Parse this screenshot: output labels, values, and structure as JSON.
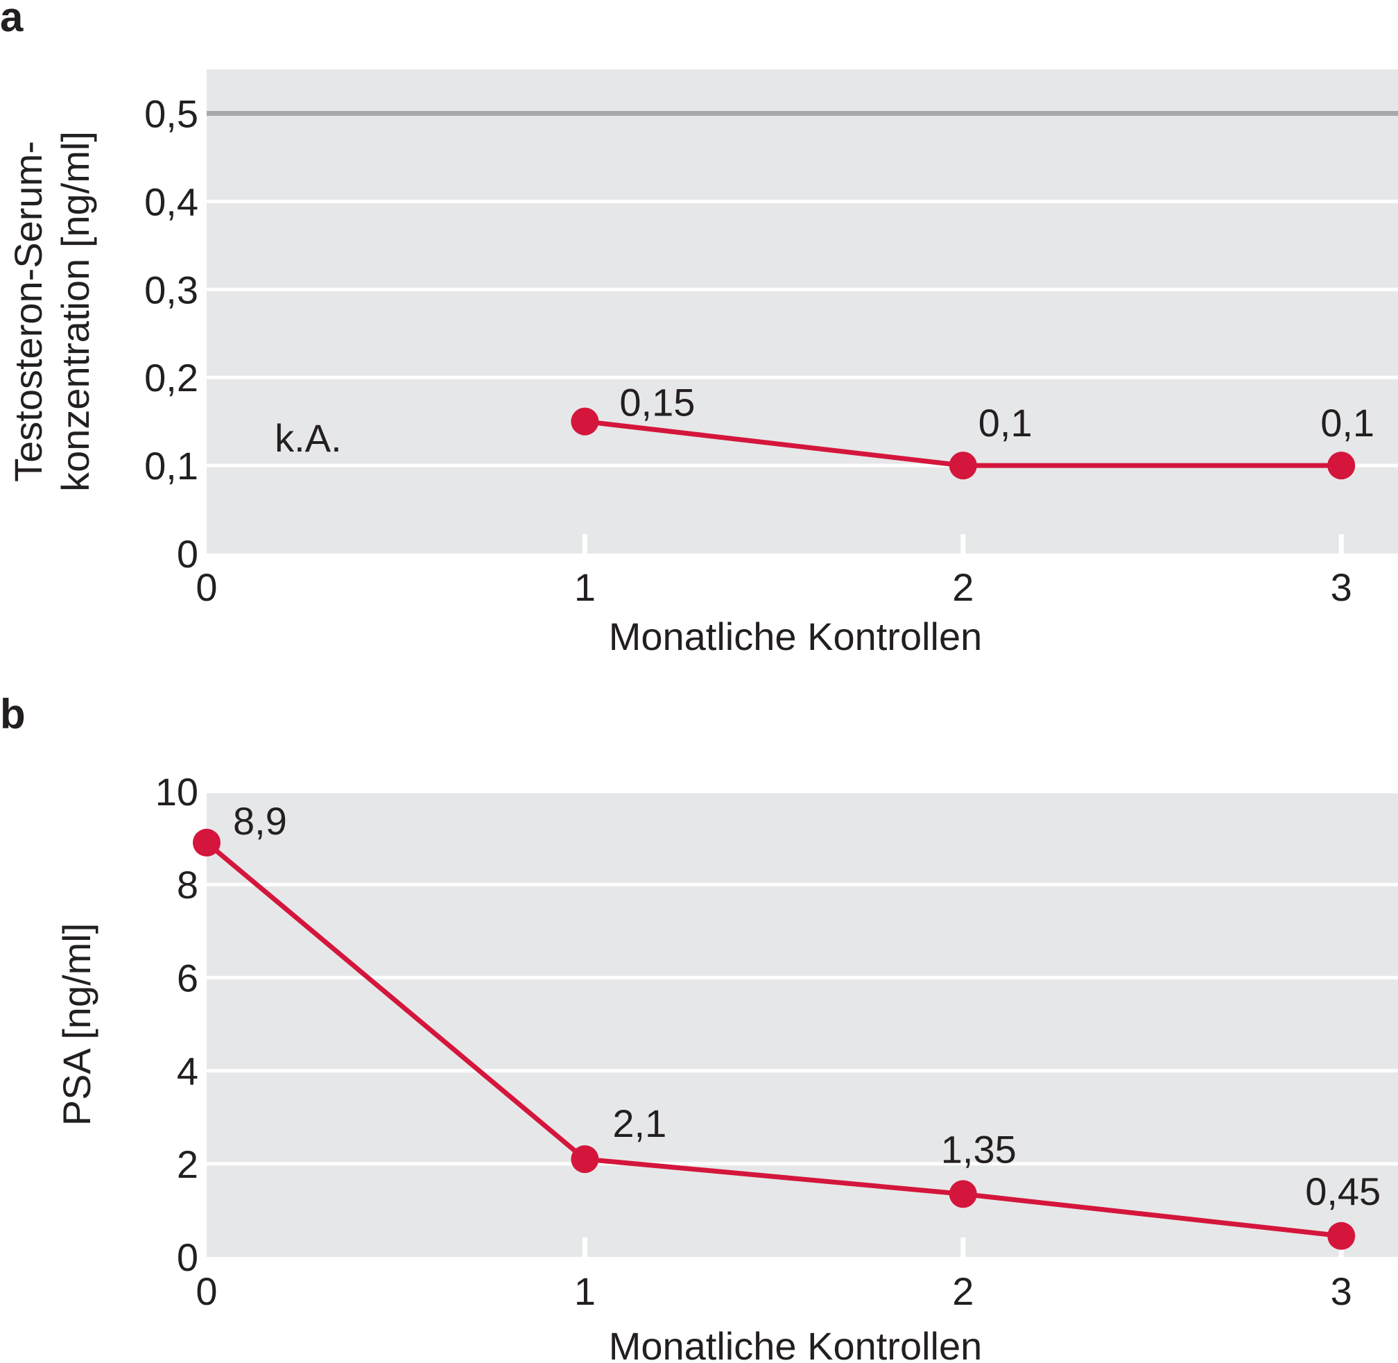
{
  "chart_data": [
    {
      "panel_label": "a",
      "type": "line",
      "xlabel": "Monatliche Kontrollen",
      "ylabel": [
        "Testosteron-Serum-",
        "konzentration [ng/ml]"
      ],
      "x_ticks": [
        0,
        1,
        2,
        3
      ],
      "y_ticks": [
        "0",
        "0,1",
        "0,2",
        "0,3",
        "0,4",
        "0,5"
      ],
      "xlim": [
        0,
        3.15
      ],
      "ylim": [
        0,
        0.55
      ],
      "grid": true,
      "reference_line": {
        "y": 0.5,
        "color": "#a7a9ac"
      },
      "annotation": {
        "text": "k.A.",
        "x": 0.18,
        "y": 0.1
      },
      "series": [
        {
          "color": "#d4163c",
          "points": [
            {
              "x": 1,
              "y": 0.15,
              "label": "0,15"
            },
            {
              "x": 2,
              "y": 0.1,
              "label": "0,1"
            },
            {
              "x": 3,
              "y": 0.1,
              "label": "0,1"
            }
          ]
        }
      ]
    },
    {
      "panel_label": "b",
      "type": "line",
      "xlabel": "Monatliche Kontrollen",
      "ylabel": [
        "PSA [ng/ml]"
      ],
      "x_ticks": [
        0,
        1,
        2,
        3
      ],
      "y_ticks": [
        "0",
        "2",
        "4",
        "6",
        "8",
        "10"
      ],
      "xlim": [
        0,
        3.15
      ],
      "ylim": [
        0,
        10
      ],
      "grid": true,
      "series": [
        {
          "color": "#d4163c",
          "points": [
            {
              "x": 0,
              "y": 8.9,
              "label": "8,9"
            },
            {
              "x": 1,
              "y": 2.1,
              "label": "2,1"
            },
            {
              "x": 2,
              "y": 1.35,
              "label": "1,35"
            },
            {
              "x": 3,
              "y": 0.45,
              "label": "0,45"
            }
          ]
        }
      ]
    }
  ],
  "colors": {
    "plot_background": "#e6e7e8",
    "gridline": "#ffffff",
    "series": "#d4163c",
    "reference": "#a7a9ac",
    "text": "#231f20"
  }
}
